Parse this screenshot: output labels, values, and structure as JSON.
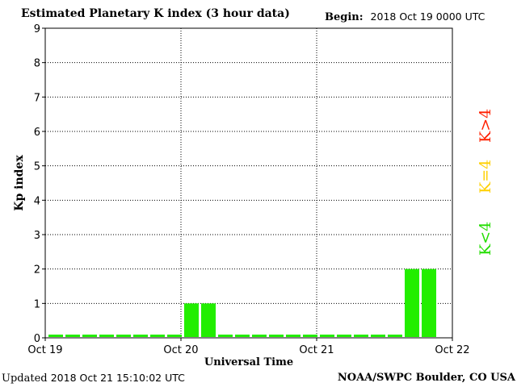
{
  "header": {
    "title": "Estimated Planetary K index (3 hour data)",
    "begin_label": "Begin:",
    "begin_value": "2018 Oct 19 0000 UTC"
  },
  "footer": {
    "updated_label": "Updated",
    "updated_value": "2018 Oct 21 15:10:02 UTC",
    "credit": "NOAA/SWPC Boulder, CO USA"
  },
  "legend": [
    {
      "label": "K>4",
      "color": "#ff2000"
    },
    {
      "label": "K=4",
      "color": "#ffd000"
    },
    {
      "label": "K<4",
      "color": "#22dd00"
    }
  ],
  "chart_data": {
    "type": "bar",
    "title": "Estimated Planetary K index (3 hour data)",
    "xlabel": "Universal Time",
    "ylabel": "Kp index",
    "ylim": [
      0,
      9
    ],
    "yticks": [
      "0",
      "1",
      "2",
      "3",
      "4",
      "5",
      "6",
      "7",
      "8",
      "9"
    ],
    "xticks": [
      "Oct 19",
      "Oct 20",
      "Oct 21",
      "Oct 22"
    ],
    "interval_hours": 3,
    "values": [
      0,
      0,
      0,
      0,
      0,
      0,
      0,
      0,
      1,
      1,
      0,
      0,
      0,
      0,
      0,
      0,
      0,
      0,
      0,
      0,
      0,
      2,
      2
    ],
    "bar_color": "#22ee00",
    "grid": true,
    "grid_style": "dotted",
    "legend_position": "right"
  }
}
